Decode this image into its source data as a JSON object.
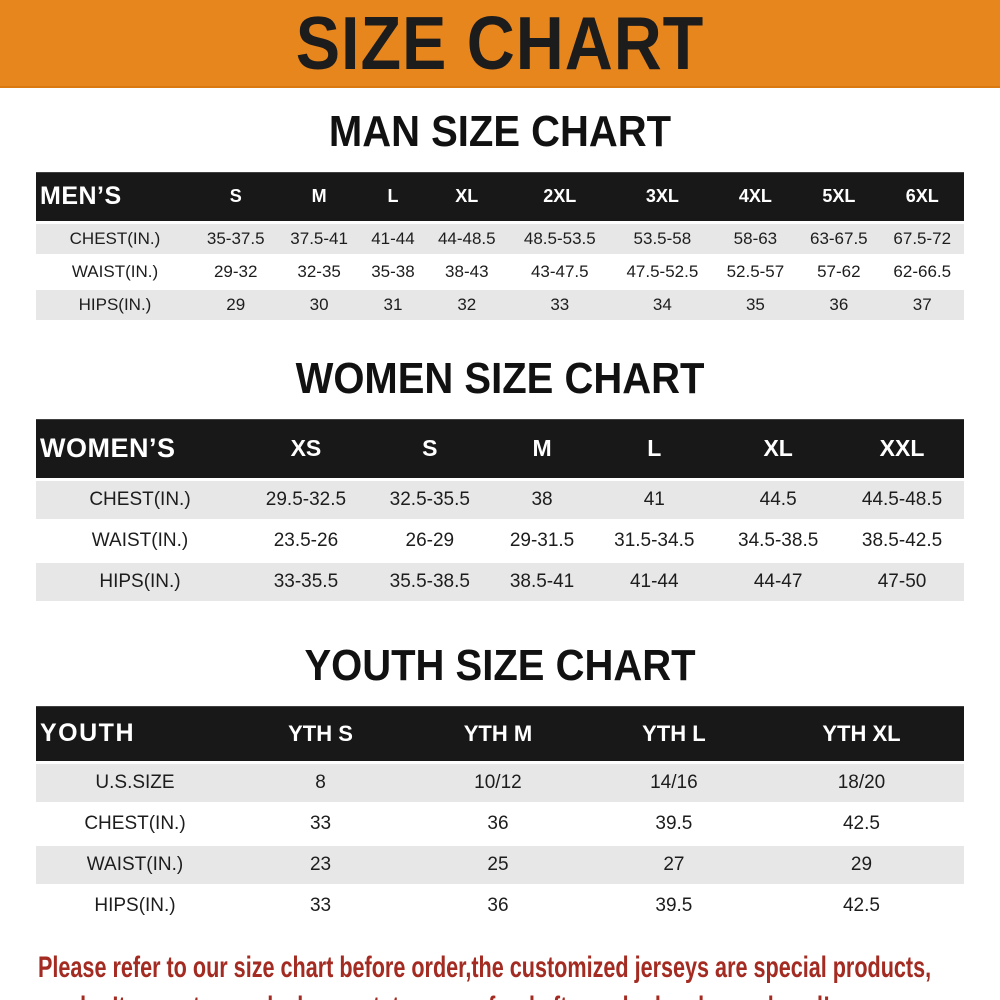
{
  "banner": {
    "title": "SIZE CHART",
    "bg_color": "#E8861E",
    "text_color": "#1c1c1c"
  },
  "sections": [
    {
      "id": "men",
      "title": "MAN SIZE CHART",
      "header_label": "MEN’S",
      "columns": [
        "S",
        "M",
        "L",
        "XL",
        "2XL",
        "3XL",
        "4XL",
        "5XL",
        "6XL"
      ],
      "rows": [
        {
          "label": "CHEST(IN.)",
          "values": [
            "35-37.5",
            "37.5-41",
            "41-44",
            "44-48.5",
            "48.5-53.5",
            "53.5-58",
            "58-63",
            "63-67.5",
            "67.5-72"
          ]
        },
        {
          "label": "WAIST(IN.)",
          "values": [
            "29-32",
            "32-35",
            "35-38",
            "38-43",
            "43-47.5",
            "47.5-52.5",
            "52.5-57",
            "57-62",
            "62-66.5"
          ]
        },
        {
          "label": "HIPS(IN.)",
          "values": [
            "29",
            "30",
            "31",
            "32",
            "33",
            "34",
            "35",
            "36",
            "37"
          ]
        }
      ]
    },
    {
      "id": "women",
      "title": "WOMEN SIZE CHART",
      "header_label": "WOMEN’S",
      "columns": [
        "XS",
        "S",
        "M",
        "L",
        "XL",
        "XXL"
      ],
      "rows": [
        {
          "label": "CHEST(IN.)",
          "values": [
            "29.5-32.5",
            "32.5-35.5",
            "38",
            "41",
            "44.5",
            "44.5-48.5"
          ]
        },
        {
          "label": "WAIST(IN.)",
          "values": [
            "23.5-26",
            "26-29",
            "29-31.5",
            "31.5-34.5",
            "34.5-38.5",
            "38.5-42.5"
          ]
        },
        {
          "label": "HIPS(IN.)",
          "values": [
            "33-35.5",
            "35.5-38.5",
            "38.5-41",
            "41-44",
            "44-47",
            "47-50"
          ]
        }
      ]
    },
    {
      "id": "youth",
      "title": "YOUTH SIZE CHART",
      "header_label": "YOUTH",
      "columns": [
        "YTH S",
        "YTH M",
        "YTH L",
        "YTH XL"
      ],
      "rows": [
        {
          "label": "U.S.SIZE",
          "values": [
            "8",
            "10/12",
            "14/16",
            "18/20"
          ]
        },
        {
          "label": "CHEST(IN.)",
          "values": [
            "33",
            "36",
            "39.5",
            "42.5"
          ]
        },
        {
          "label": "WAIST(IN.)",
          "values": [
            "23",
            "25",
            "27",
            "29"
          ]
        },
        {
          "label": "HIPS(IN.)",
          "values": [
            "33",
            "36",
            "39.5",
            "42.5"
          ]
        }
      ]
    }
  ],
  "footer": {
    "line1": "Please refer to our size chart before order,the customized jerseys are special products,",
    "line2": "we don’t accept cancel, change, teturn or refund after order has been placed!",
    "text_color": "#A32B21"
  },
  "colors": {
    "banner_bg": "#E8861E",
    "table_header_bar": "#181818",
    "row_shade": "#E7E7E7",
    "footer_text": "#A32B21"
  }
}
